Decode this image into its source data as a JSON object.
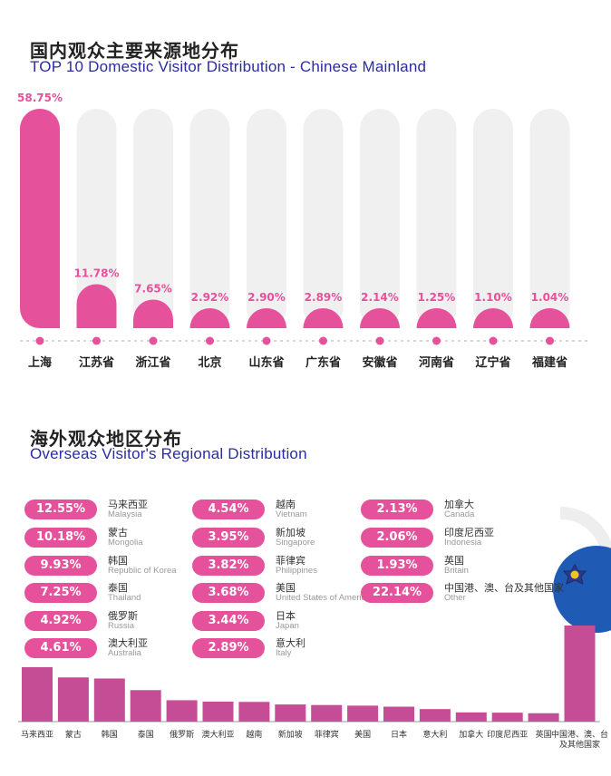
{
  "section1": {
    "title_cn": "国内观众主要来源地分布",
    "title_en": "TOP 10 Domestic Visitor Distribution - Chinese Mainland"
  },
  "section2": {
    "title_cn": "海外观众地区分布",
    "title_en": "Overseas Visitor's Regional Distribution"
  },
  "colors": {
    "accent_pink": "#e6519b",
    "bar_magenta": "#c44d96",
    "track_gray": "#f0f0f0",
    "title_blue": "#2b2ca0",
    "deco_blue": "#1f5bb5"
  },
  "chart_data": [
    {
      "type": "bar",
      "categories": [
        "上海",
        "江苏省",
        "浙江省",
        "北京",
        "山东省",
        "广东省",
        "安徽省",
        "河南省",
        "辽宁省",
        "福建省"
      ],
      "values": [
        58.75,
        11.78,
        7.65,
        2.92,
        2.9,
        2.89,
        2.14,
        1.25,
        1.1,
        1.04
      ],
      "labels": [
        "58.75%",
        "11.78%",
        "7.65%",
        "2.92%",
        "2.90%",
        "2.89%",
        "2.14%",
        "1.25%",
        "1.10%",
        "1.04%"
      ],
      "title": "TOP 10 Domestic Visitor Distribution - Chinese Mainland",
      "ylim": [
        0,
        58.75
      ]
    },
    {
      "type": "bar",
      "categories": [
        "马来西亚",
        "蒙古",
        "韩国",
        "泰国",
        "俄罗斯",
        "澳大利亚",
        "越南",
        "新加坡",
        "菲律宾",
        "美国",
        "日本",
        "意大利",
        "加拿大",
        "印度尼西亚",
        "英国",
        "中国港、澳、台及其他国家"
      ],
      "values": [
        12.55,
        10.18,
        9.93,
        7.25,
        4.92,
        4.61,
        4.54,
        3.95,
        3.82,
        3.68,
        3.44,
        2.89,
        2.13,
        2.06,
        1.93,
        22.14
      ],
      "title": "Overseas Visitor's Regional Distribution",
      "ylim": [
        0,
        22.14
      ]
    }
  ],
  "overseas_legend": [
    {
      "pct": "12.55%",
      "cn": "马来西亚",
      "en": "Malaysia"
    },
    {
      "pct": "10.18%",
      "cn": "蒙古",
      "en": "Mongolia"
    },
    {
      "pct": "9.93%",
      "cn": "韩国",
      "en": "Republic of Korea"
    },
    {
      "pct": "7.25%",
      "cn": "泰国",
      "en": "Thailand"
    },
    {
      "pct": "4.92%",
      "cn": "俄罗斯",
      "en": "Russia"
    },
    {
      "pct": "4.61%",
      "cn": "澳大利亚",
      "en": "Australia"
    },
    {
      "pct": "4.54%",
      "cn": "越南",
      "en": "Vietnam"
    },
    {
      "pct": "3.95%",
      "cn": "新加坡",
      "en": "Singapore"
    },
    {
      "pct": "3.82%",
      "cn": "菲律宾",
      "en": "Philippines"
    },
    {
      "pct": "3.68%",
      "cn": "美国",
      "en": "United States of America"
    },
    {
      "pct": "3.44%",
      "cn": "日本",
      "en": "Japan"
    },
    {
      "pct": "2.89%",
      "cn": "意大利",
      "en": "Italy"
    },
    {
      "pct": "2.13%",
      "cn": "加拿大",
      "en": "Canada"
    },
    {
      "pct": "2.06%",
      "cn": "印度尼西亚",
      "en": "Indonesia"
    },
    {
      "pct": "1.93%",
      "cn": "英国",
      "en": "Britain"
    },
    {
      "pct": "22.14%",
      "cn": "中国港、澳、台及其他国家",
      "en": "Other"
    }
  ],
  "overseas_axis_labels": [
    [
      "马来西亚"
    ],
    [
      "蒙古"
    ],
    [
      "韩国"
    ],
    [
      "泰国"
    ],
    [
      "俄罗斯"
    ],
    [
      "澳大利亚"
    ],
    [
      "越南"
    ],
    [
      "新加坡"
    ],
    [
      "菲律宾"
    ],
    [
      "美国"
    ],
    [
      "日本"
    ],
    [
      "意大利"
    ],
    [
      "加拿大"
    ],
    [
      "印度尼西亚"
    ],
    [
      "英国"
    ],
    [
      "中国港、澳、台",
      "及其他国家"
    ]
  ]
}
